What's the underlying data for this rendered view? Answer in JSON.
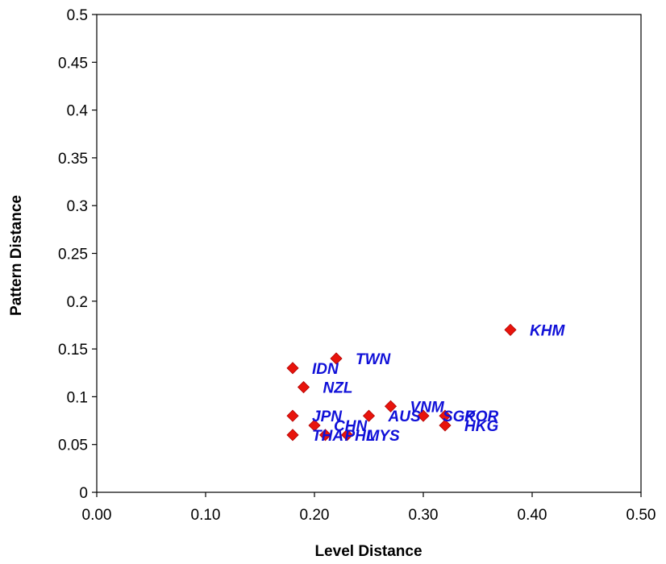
{
  "chart_data": {
    "type": "scatter",
    "title": "",
    "xlabel": "Level Distance",
    "ylabel": "Pattern Distance",
    "xlim": [
      0,
      0.5
    ],
    "ylim": [
      0,
      0.5
    ],
    "x_ticks": [
      "0.00",
      "0.10",
      "0.20",
      "0.30",
      "0.40",
      "0.50"
    ],
    "y_ticks": [
      "0",
      "0.05",
      "0.1",
      "0.15",
      "0.2",
      "0.25",
      "0.3",
      "0.35",
      "0.4",
      "0.45",
      "0.5"
    ],
    "grid": false,
    "legend": "none",
    "marker": "diamond",
    "colors": {
      "marker": "#e8140c",
      "marker_edge": "#b00000",
      "label": "#1010d8",
      "axis": "#000000"
    },
    "points": [
      {
        "label": "KHM",
        "x": 0.38,
        "y": 0.17
      },
      {
        "label": "TWN",
        "x": 0.22,
        "y": 0.14
      },
      {
        "label": "IDN",
        "x": 0.18,
        "y": 0.13
      },
      {
        "label": "NZL",
        "x": 0.19,
        "y": 0.11
      },
      {
        "label": "VNM",
        "x": 0.27,
        "y": 0.09
      },
      {
        "label": "AUS",
        "x": 0.25,
        "y": 0.08
      },
      {
        "label": "SGP",
        "x": 0.3,
        "y": 0.08
      },
      {
        "label": "KOR",
        "x": 0.32,
        "y": 0.08
      },
      {
        "label": "HKG",
        "x": 0.32,
        "y": 0.07
      },
      {
        "label": "JPN",
        "x": 0.18,
        "y": 0.08
      },
      {
        "label": "CHN",
        "x": 0.2,
        "y": 0.07
      },
      {
        "label": "THA",
        "x": 0.18,
        "y": 0.06
      },
      {
        "label": "PHL",
        "x": 0.21,
        "y": 0.06
      },
      {
        "label": "MYS",
        "x": 0.23,
        "y": 0.06
      }
    ]
  }
}
